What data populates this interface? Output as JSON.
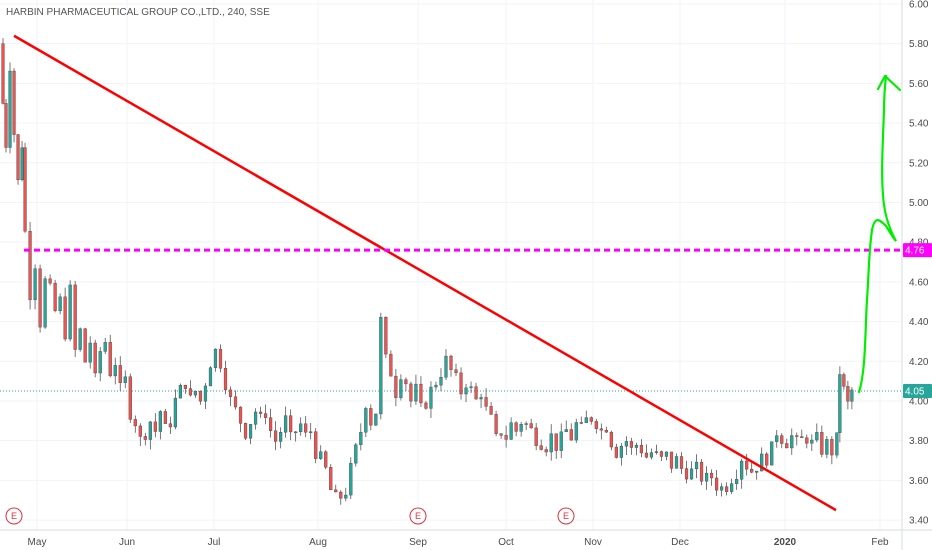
{
  "chart_data": {
    "type": "candlestick",
    "title": "HARBIN PHARMACEUTICAL GROUP CO.,LTD., 240, SSE",
    "x_ticks": [
      "May",
      "Jun",
      "Jul",
      "Aug",
      "Sep",
      "Oct",
      "Nov",
      "Dec",
      "2020",
      "Feb"
    ],
    "y_ticks": [
      "3.40",
      "3.60",
      "3.80",
      "4.00",
      "4.20",
      "4.40",
      "4.60",
      "4.80",
      "5.00",
      "5.20",
      "5.40",
      "5.60",
      "5.80",
      "6.00"
    ],
    "ylim": [
      3.35,
      6.02
    ],
    "grid": true,
    "current_price_label": "4.05",
    "level_label": "4.76",
    "colors": {
      "up": "#26a69a",
      "down": "#ef5350",
      "trendline": "#ff0000",
      "level": "#ff00ff",
      "projection": "#00ee00",
      "price_line": "#26a69a",
      "event": "#e0303a"
    },
    "close_path": [
      [
        0,
        5.8
      ],
      [
        3,
        5.5
      ],
      [
        6,
        5.3
      ],
      [
        10,
        5.7
      ],
      [
        14,
        5.35
      ],
      [
        18,
        5.1
      ],
      [
        22,
        5.3
      ],
      [
        25,
        4.85
      ],
      [
        30,
        4.55
      ],
      [
        35,
        4.7
      ],
      [
        40,
        4.4
      ],
      [
        45,
        4.6
      ],
      [
        50,
        4.55
      ],
      [
        55,
        4.45
      ],
      [
        60,
        4.5
      ],
      [
        65,
        4.35
      ],
      [
        70,
        4.55
      ],
      [
        75,
        4.25
      ],
      [
        80,
        4.35
      ],
      [
        85,
        4.2
      ],
      [
        90,
        4.3
      ],
      [
        95,
        4.1
      ],
      [
        100,
        4.25
      ],
      [
        105,
        4.3
      ],
      [
        110,
        4.15
      ],
      [
        115,
        4.2
      ],
      [
        120,
        4.05
      ],
      [
        125,
        4.1
      ],
      [
        130,
        3.95
      ],
      [
        135,
        3.9
      ],
      [
        140,
        3.8
      ],
      [
        145,
        3.85
      ],
      [
        150,
        3.9
      ],
      [
        155,
        3.85
      ],
      [
        160,
        3.95
      ],
      [
        165,
        3.85
      ],
      [
        170,
        3.9
      ],
      [
        175,
        4.0
      ],
      [
        180,
        4.05
      ],
      [
        185,
        4.1
      ],
      [
        190,
        4.0
      ],
      [
        195,
        4.05
      ],
      [
        200,
        4.0
      ],
      [
        205,
        4.1
      ],
      [
        210,
        4.2
      ],
      [
        215,
        4.25
      ],
      [
        220,
        4.2
      ],
      [
        225,
        4.1
      ],
      [
        230,
        4.0
      ],
      [
        235,
        3.95
      ],
      [
        240,
        3.9
      ],
      [
        245,
        3.85
      ],
      [
        250,
        3.9
      ],
      [
        255,
        3.95
      ],
      [
        260,
        3.9
      ],
      [
        265,
        3.95
      ],
      [
        270,
        3.85
      ],
      [
        275,
        3.8
      ],
      [
        280,
        3.85
      ],
      [
        285,
        3.9
      ],
      [
        290,
        3.8
      ],
      [
        295,
        3.85
      ],
      [
        300,
        3.88
      ],
      [
        305,
        3.82
      ],
      [
        310,
        3.85
      ],
      [
        315,
        3.75
      ],
      [
        320,
        3.7
      ],
      [
        325,
        3.65
      ],
      [
        330,
        3.55
      ],
      [
        335,
        3.5
      ],
      [
        340,
        3.52
      ],
      [
        345,
        3.55
      ],
      [
        350,
        3.65
      ],
      [
        355,
        3.75
      ],
      [
        360,
        3.85
      ],
      [
        365,
        4.0
      ],
      [
        370,
        3.9
      ],
      [
        375,
        3.95
      ],
      [
        380,
        4.4
      ],
      [
        385,
        4.2
      ],
      [
        390,
        4.15
      ],
      [
        395,
        4.05
      ],
      [
        400,
        4.15
      ],
      [
        405,
        4.1
      ],
      [
        410,
        4.0
      ],
      [
        415,
        4.05
      ],
      [
        420,
        3.95
      ],
      [
        425,
        4.0
      ],
      [
        430,
        4.05
      ],
      [
        435,
        4.1
      ],
      [
        440,
        4.15
      ],
      [
        445,
        4.2
      ],
      [
        450,
        4.15
      ],
      [
        455,
        4.1
      ],
      [
        460,
        4.05
      ],
      [
        465,
        4.1
      ],
      [
        470,
        4.05
      ],
      [
        475,
        4.0
      ],
      [
        480,
        4.05
      ],
      [
        485,
        3.95
      ],
      [
        490,
        3.9
      ],
      [
        495,
        3.8
      ],
      [
        500,
        3.85
      ],
      [
        505,
        3.82
      ],
      [
        510,
        3.88
      ],
      [
        515,
        3.85
      ],
      [
        520,
        3.9
      ],
      [
        525,
        3.88
      ],
      [
        530,
        3.85
      ],
      [
        535,
        3.82
      ],
      [
        540,
        3.8
      ],
      [
        545,
        3.78
      ],
      [
        550,
        3.82
      ],
      [
        555,
        3.78
      ],
      [
        560,
        3.8
      ],
      [
        565,
        3.85
      ],
      [
        570,
        3.82
      ],
      [
        575,
        3.88
      ],
      [
        580,
        3.85
      ],
      [
        585,
        3.9
      ],
      [
        590,
        3.92
      ],
      [
        595,
        3.9
      ],
      [
        600,
        3.85
      ],
      [
        605,
        3.88
      ],
      [
        610,
        3.8
      ],
      [
        615,
        3.75
      ],
      [
        620,
        3.78
      ],
      [
        625,
        3.8
      ],
      [
        630,
        3.75
      ],
      [
        635,
        3.78
      ],
      [
        640,
        3.76
      ],
      [
        645,
        3.72
      ],
      [
        650,
        3.74
      ],
      [
        655,
        3.72
      ],
      [
        660,
        3.7
      ],
      [
        665,
        3.72
      ],
      [
        670,
        3.68
      ],
      [
        675,
        3.7
      ],
      [
        680,
        3.66
      ],
      [
        685,
        3.65
      ],
      [
        690,
        3.64
      ],
      [
        695,
        3.65
      ],
      [
        700,
        3.62
      ],
      [
        705,
        3.6
      ],
      [
        710,
        3.62
      ],
      [
        715,
        3.58
      ],
      [
        720,
        3.56
      ],
      [
        725,
        3.58
      ],
      [
        730,
        3.62
      ],
      [
        735,
        3.65
      ],
      [
        740,
        3.72
      ],
      [
        745,
        3.68
      ],
      [
        750,
        3.65
      ],
      [
        755,
        3.68
      ],
      [
        760,
        3.7
      ],
      [
        765,
        3.72
      ],
      [
        770,
        3.75
      ],
      [
        775,
        3.85
      ],
      [
        780,
        3.82
      ],
      [
        785,
        3.8
      ],
      [
        790,
        3.82
      ],
      [
        795,
        3.78
      ],
      [
        800,
        3.8
      ],
      [
        805,
        3.82
      ],
      [
        810,
        3.78
      ],
      [
        815,
        3.8
      ],
      [
        820,
        3.76
      ],
      [
        825,
        3.78
      ],
      [
        830,
        3.75
      ],
      [
        835,
        3.8
      ],
      [
        838,
        4.15
      ],
      [
        842,
        4.05
      ],
      [
        846,
        3.98
      ],
      [
        850,
        4.05
      ]
    ]
  }
}
